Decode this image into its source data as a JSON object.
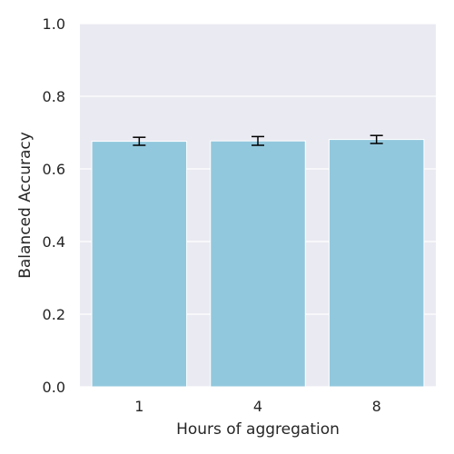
{
  "chart_data": {
    "type": "bar",
    "categories": [
      "1",
      "4",
      "8"
    ],
    "values": [
      0.676,
      0.677,
      0.681
    ],
    "errors": [
      0.011,
      0.012,
      0.011
    ],
    "xlabel": "Hours of aggregation",
    "ylabel": "Balanced Accuracy",
    "ylim": [
      0,
      1.0
    ],
    "yticks": [
      "0.0",
      "0.2",
      "0.4",
      "0.6",
      "0.8",
      "1.0"
    ],
    "grid": true,
    "colors": {
      "bar": "#92c8de",
      "background": "#eaeaf2",
      "grid": "#ffffff",
      "error": "#000000"
    }
  }
}
